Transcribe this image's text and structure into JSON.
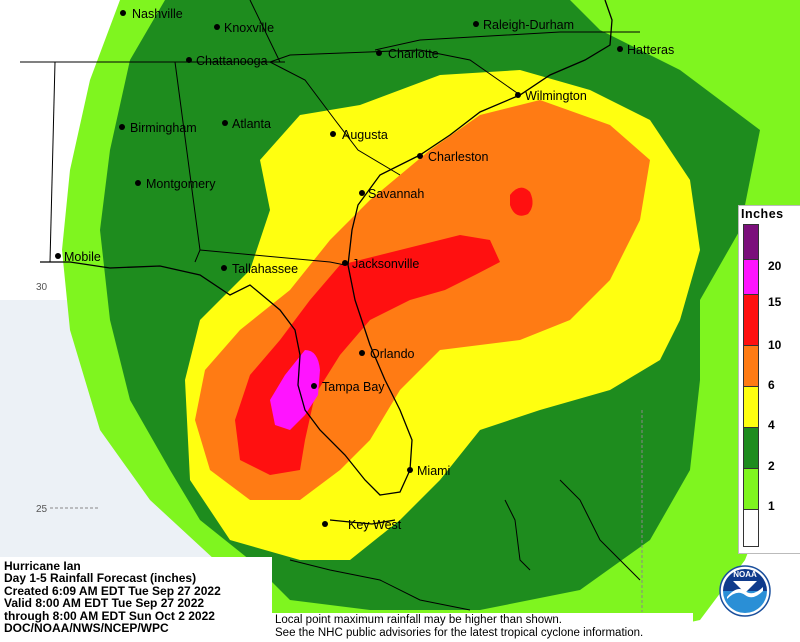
{
  "legend": {
    "title": "Inches",
    "items": [
      {
        "label": "20",
        "color": "#7b0f7b"
      },
      {
        "label": "15",
        "color": "#ff14ff"
      },
      {
        "label": "10",
        "color": "#ff1010"
      },
      {
        "label": "6",
        "color": "#ff7b14"
      },
      {
        "label": "4",
        "color": "#ffff10"
      },
      {
        "label": "2",
        "color": "#1e8c1e"
      },
      {
        "label": "1",
        "color": "#7ff51f"
      }
    ]
  },
  "info": {
    "line1": "Hurricane Ian",
    "line2": "Day 1-5 Rainfall Forecast (inches)",
    "line3": "Created 6:09 AM EDT Tue Sep 27 2022",
    "line4": "Valid 8:00 AM EDT Tue Sep 27 2022",
    "line5": "through 8:00 AM EDT Sun Oct 2 2022",
    "line6": "DOC/NOAA/NWS/NCEP/WPC"
  },
  "disclaimer": {
    "line1": "Local point maximum rainfall may be higher than shown.",
    "line2": "See the NHC public advisories for the latest tropical cyclone information."
  },
  "latitude_labels": {
    "lat30": "30",
    "lat25": "25"
  },
  "cities": {
    "nashville": "Nashville",
    "knoxville": "Knoxville",
    "raleigh_durham": "Raleigh-Durham",
    "chattanooga": "Chattanooga",
    "charlotte": "Charlotte",
    "hatteras": "Hatteras",
    "wilmington": "Wilmington",
    "birmingham": "Birmingham",
    "atlanta": "Atlanta",
    "augusta": "Augusta",
    "charleston": "Charleston",
    "montgomery": "Montgomery",
    "savannah": "Savannah",
    "mobile": "Mobile",
    "tallahassee": "Tallahassee",
    "jacksonville": "Jacksonville",
    "orlando": "Orlando",
    "tampa_bay": "Tampa Bay",
    "miami": "Miami",
    "key_west": "Key West"
  },
  "colors": {
    "ocean": "#ffffff",
    "land_none": "#ffffff",
    "lt_green": "#7ff51f",
    "dk_green": "#1e8c1e",
    "yellow": "#ffff10",
    "orange": "#ff7b14",
    "red": "#ff1010",
    "magenta": "#ff14ff"
  },
  "logo": {
    "text": "NOAA"
  }
}
